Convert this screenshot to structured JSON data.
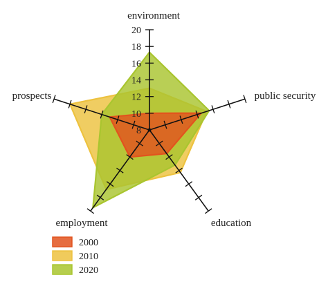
{
  "chart_data": {
    "type": "radar",
    "title": "",
    "axes": [
      "environment",
      "public security",
      "education",
      "employment",
      "prospects"
    ],
    "range": [
      8,
      20
    ],
    "radial_ticks": [
      8,
      10,
      12,
      14,
      16,
      18,
      20
    ],
    "series": [
      {
        "name": "2000",
        "color": "#e2531e",
        "values": [
          10.0,
          14.5,
          11.5,
          12.0,
          13.0
        ]
      },
      {
        "name": "2010",
        "color": "#edc23f",
        "values": [
          13.0,
          15.2,
          14.3,
          16.8,
          18.0
        ]
      },
      {
        "name": "2020",
        "color": "#a9c52f",
        "values": [
          17.3,
          15.5,
          13.2,
          19.5,
          14.0
        ]
      }
    ],
    "legend_position": "bottom-left"
  }
}
